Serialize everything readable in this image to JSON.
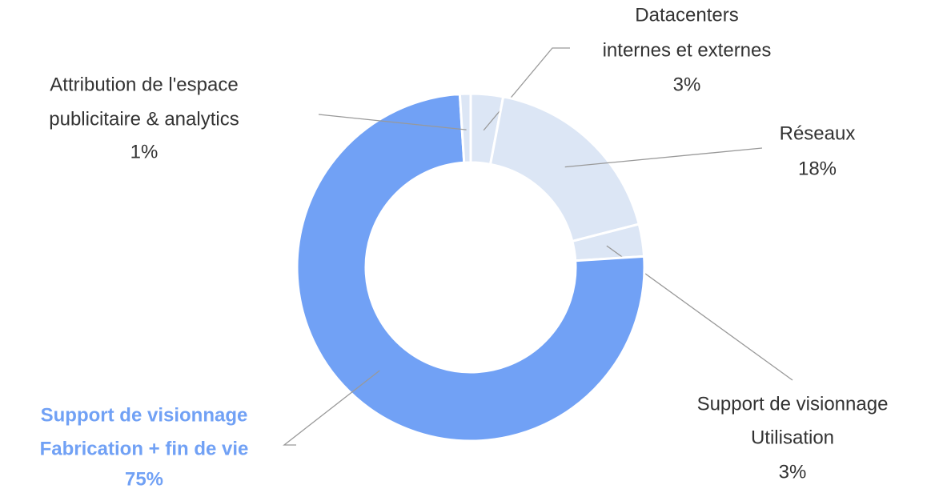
{
  "chart_data": {
    "type": "donut",
    "categories": [
      [
        "Datacenters",
        "internes et externes"
      ],
      [
        "Réseaux"
      ],
      [
        "Support de visionnage",
        "Utilisation"
      ],
      [
        "Support de visionnage",
        "Fabrication + fin de vie"
      ],
      [
        "Attribution de l'espace",
        "publicitaire & analytics"
      ]
    ],
    "values": [
      3,
      18,
      3,
      75,
      1
    ],
    "value_labels": [
      "3%",
      "18%",
      "3%",
      "75%",
      "1%"
    ],
    "colors": [
      "#dce6f5",
      "#dce6f5",
      "#dce6f5",
      "#71a1f5",
      "#dce6f5"
    ]
  }
}
